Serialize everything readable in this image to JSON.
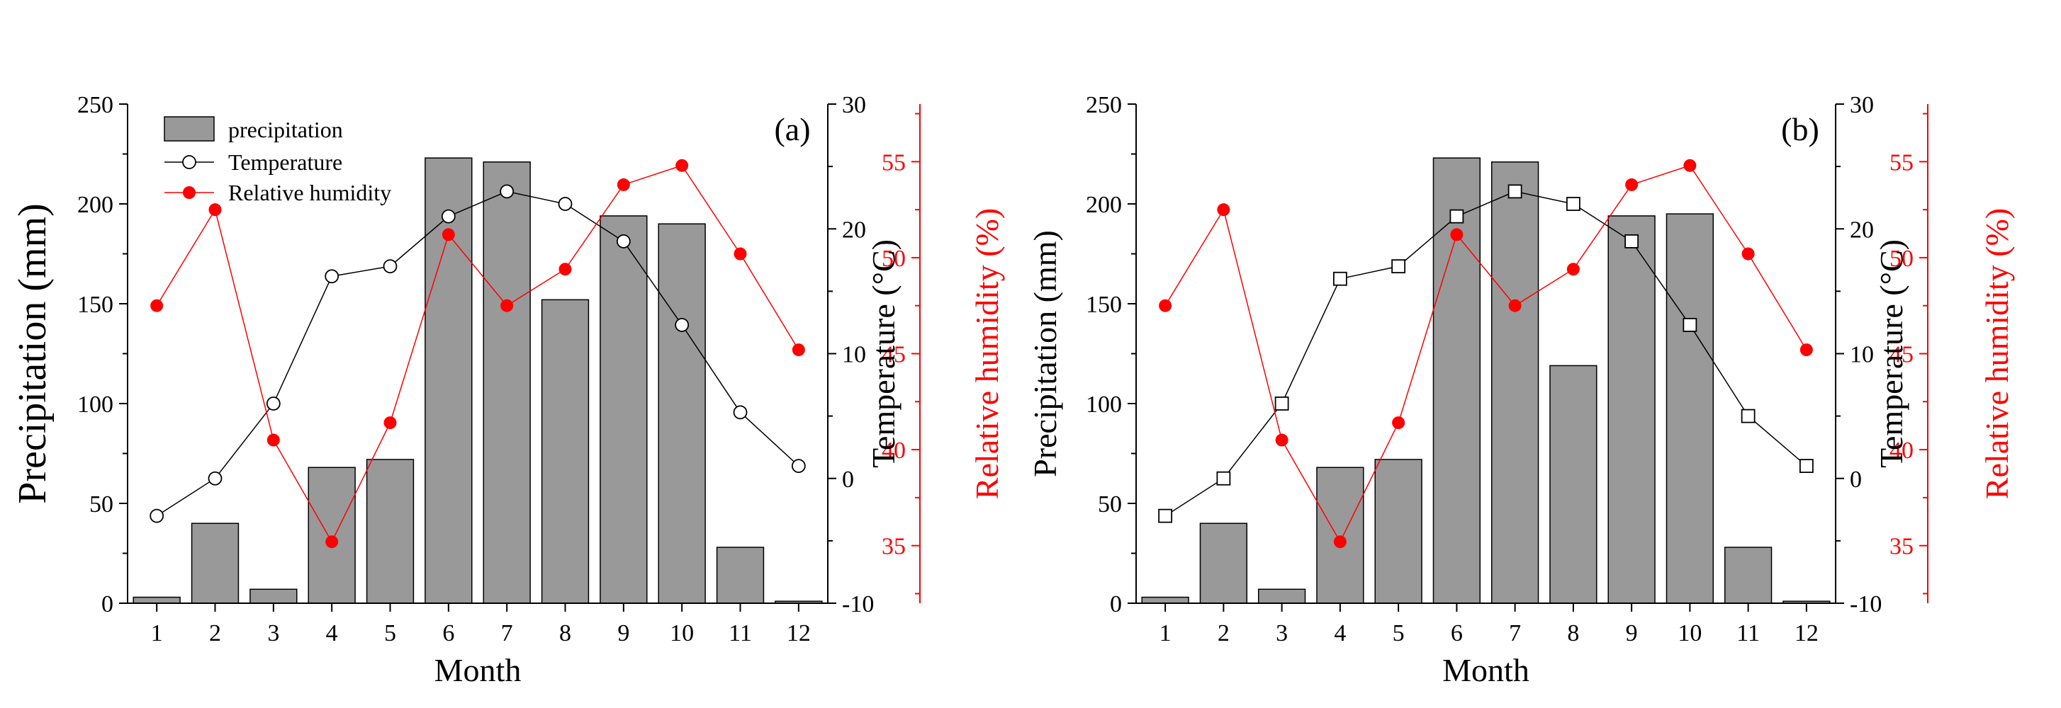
{
  "chart_data": [
    {
      "panel": "(a)",
      "type": "bar+line",
      "categories": [
        "1",
        "2",
        "3",
        "4",
        "5",
        "6",
        "7",
        "8",
        "9",
        "10",
        "11",
        "12"
      ],
      "xlabel": "Month",
      "ylabel_left": "Precipitation (mm)",
      "ylabel_right": "Temperature (°C)",
      "ylabel_right2": "Relative humidity (%)",
      "ylim_left": [
        0,
        250
      ],
      "yticks_left": [
        "0",
        "50",
        "100",
        "150",
        "200",
        "250"
      ],
      "ylim_right": [
        -10,
        30
      ],
      "yticks_right": [
        "-10",
        "0",
        "10",
        "20",
        "30"
      ],
      "ylim_right2": [
        32,
        58
      ],
      "yticks_right2": [
        "35",
        "40",
        "45",
        "50",
        "55"
      ],
      "legend": [
        "precipitation",
        "Temperature",
        "Relative humidity"
      ],
      "series": [
        {
          "name": "precipitation",
          "kind": "bar",
          "values": [
            3,
            40,
            7,
            68,
            72,
            223,
            221,
            152,
            194,
            190,
            28,
            1
          ]
        },
        {
          "name": "Temperature",
          "kind": "line",
          "marker": "circle",
          "values": [
            -3,
            0,
            6,
            16.2,
            17,
            21,
            23,
            22,
            19,
            12.3,
            5.3,
            1
          ]
        },
        {
          "name": "Relative humidity",
          "kind": "line",
          "marker": "dot",
          "values": [
            47.5,
            52.5,
            40.5,
            35.2,
            41.4,
            51.2,
            47.5,
            49.4,
            53.8,
            54.8,
            50.2,
            45.2
          ]
        }
      ]
    },
    {
      "panel": "(b)",
      "type": "bar+line",
      "categories": [
        "1",
        "2",
        "3",
        "4",
        "5",
        "6",
        "7",
        "8",
        "9",
        "10",
        "11",
        "12"
      ],
      "xlabel": "Month",
      "ylabel_left": "Precipitation (mm)",
      "ylabel_right": "Temperature (°C)",
      "ylabel_right2": "Relative humidity (%)",
      "ylim_left": [
        0,
        250
      ],
      "yticks_left": [
        "0",
        "50",
        "100",
        "150",
        "200",
        "250"
      ],
      "ylim_right": [
        -10,
        30
      ],
      "yticks_right": [
        "-10",
        "0",
        "10",
        "20",
        "30"
      ],
      "ylim_right2": [
        32,
        58
      ],
      "yticks_right2": [
        "35",
        "40",
        "45",
        "50",
        "55"
      ],
      "legend": [],
      "series": [
        {
          "name": "precipitation",
          "kind": "bar",
          "values": [
            3,
            40,
            7,
            68,
            72,
            223,
            221,
            119,
            194,
            195,
            28,
            1
          ]
        },
        {
          "name": "Temperature",
          "kind": "line",
          "marker": "square",
          "values": [
            -3,
            0,
            6,
            16,
            17,
            21,
            23,
            22,
            19,
            12.3,
            5,
            1
          ]
        },
        {
          "name": "Relative humidity",
          "kind": "line",
          "marker": "dot",
          "values": [
            47.5,
            52.5,
            40.5,
            35.2,
            41.4,
            51.2,
            47.5,
            49.4,
            53.8,
            54.8,
            50.2,
            45.2
          ]
        }
      ]
    }
  ],
  "colors": {
    "bar_fill": "#999999",
    "bar_stroke": "#000000",
    "temperature_line": "#000000",
    "humidity_line": "#ff0000",
    "humidity_axis": "#ff0000"
  }
}
